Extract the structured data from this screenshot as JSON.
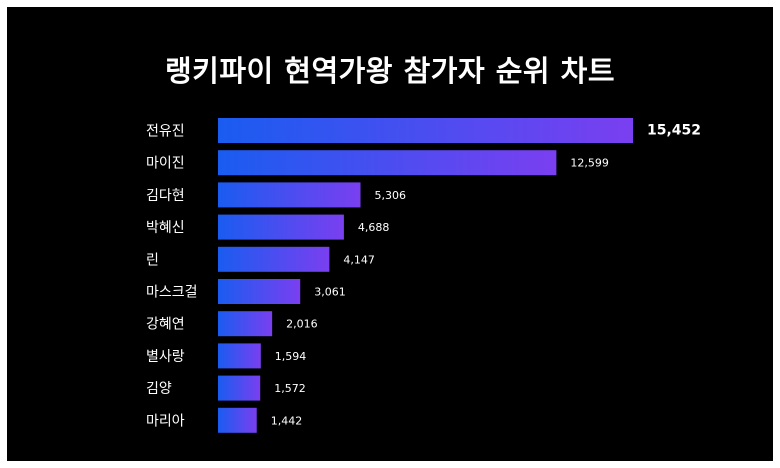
{
  "title": "랭키파이 현역가왕 참가자 순위 차트",
  "colors": {
    "background": "#000000",
    "frame": "#ffffff",
    "bar_start": "#1a5cf0",
    "bar_end": "#7a3ff0",
    "text": "#ffffff"
  },
  "chart_data": {
    "type": "bar",
    "orientation": "horizontal",
    "title": "랭키파이 현역가왕 참가자 순위 차트",
    "categories": [
      "전유진",
      "마이진",
      "김다현",
      "박혜신",
      "린",
      "마스크걸",
      "강혜연",
      "별사랑",
      "김양",
      "마리아"
    ],
    "values": [
      15452,
      12599,
      5306,
      4688,
      4147,
      3061,
      2016,
      1594,
      1572,
      1442
    ],
    "value_labels": [
      "15,452",
      "12,599",
      "5,306",
      "4,688",
      "4,147",
      "3,061",
      "2,016",
      "1,594",
      "1,572",
      "1,442"
    ],
    "xlabel": "",
    "ylabel": "",
    "xlim": [
      0,
      15452
    ],
    "grid": false,
    "legend": "none"
  }
}
